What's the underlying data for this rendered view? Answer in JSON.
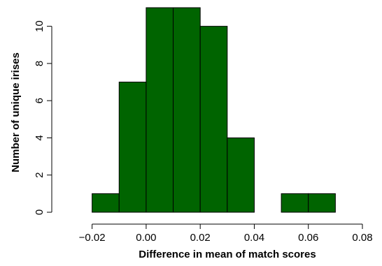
{
  "chart_data": {
    "type": "bar",
    "xlabel": "Difference in mean of match scores",
    "ylabel": "Number of unique irises",
    "xlim": [
      -0.03,
      0.08
    ],
    "ylim": [
      0,
      11
    ],
    "x_ticks": [
      "−0.02",
      "0.00",
      "0.02",
      "0.04",
      "0.06",
      "0.08"
    ],
    "x_tick_values": [
      -0.02,
      0.0,
      0.02,
      0.04,
      0.06,
      0.08
    ],
    "y_ticks": [
      "0",
      "2",
      "4",
      "6",
      "8",
      "10"
    ],
    "y_tick_values": [
      0,
      2,
      4,
      6,
      8,
      10
    ],
    "bins": [
      {
        "start": -0.02,
        "end": -0.01,
        "count": 1
      },
      {
        "start": -0.01,
        "end": 0.0,
        "count": 7
      },
      {
        "start": 0.0,
        "end": 0.01,
        "count": 11
      },
      {
        "start": 0.01,
        "end": 0.02,
        "count": 11
      },
      {
        "start": 0.02,
        "end": 0.03,
        "count": 10
      },
      {
        "start": 0.03,
        "end": 0.04,
        "count": 4
      },
      {
        "start": 0.04,
        "end": 0.05,
        "count": 0
      },
      {
        "start": 0.05,
        "end": 0.06,
        "count": 1
      },
      {
        "start": 0.06,
        "end": 0.07,
        "count": 1
      }
    ],
    "bar_color": "#006400",
    "grid": false,
    "legend": "none"
  }
}
